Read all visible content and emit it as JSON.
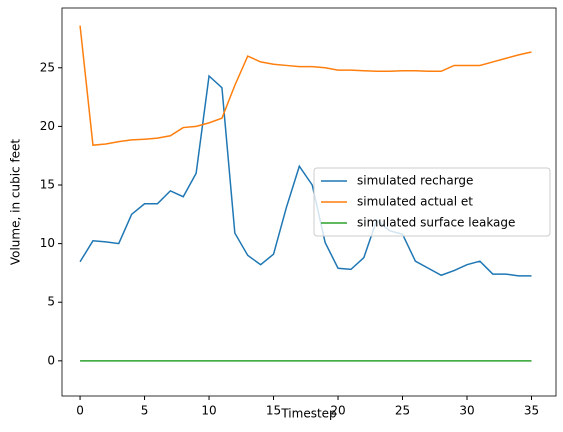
{
  "chart_data": {
    "type": "line",
    "xlabel": "Timestep",
    "ylabel": "Volume, in cubic feet",
    "x": [
      0,
      1,
      2,
      3,
      4,
      5,
      6,
      7,
      8,
      9,
      10,
      11,
      12,
      13,
      14,
      15,
      16,
      17,
      18,
      19,
      20,
      21,
      22,
      23,
      24,
      25,
      26,
      27,
      28,
      29,
      30,
      31,
      32,
      33,
      34,
      35
    ],
    "series": [
      {
        "name": "simulated recharge",
        "color": "#1f77b4",
        "values": [
          8.45,
          10.24,
          10.15,
          10.0,
          12.5,
          13.4,
          13.4,
          14.5,
          14.0,
          16.0,
          24.3,
          23.3,
          10.9,
          9.0,
          8.2,
          9.1,
          13.1,
          16.6,
          15.0,
          10.1,
          7.9,
          7.8,
          8.8,
          12.0,
          11.1,
          10.8,
          8.5,
          7.9,
          7.3,
          7.7,
          8.2,
          8.5,
          7.4,
          7.4,
          7.25,
          7.25
        ]
      },
      {
        "name": "simulated actual et",
        "color": "#ff7f0e",
        "values": [
          28.6,
          18.4,
          18.5,
          18.7,
          18.85,
          18.9,
          19.0,
          19.2,
          19.9,
          20.0,
          20.3,
          20.7,
          23.5,
          26.0,
          25.5,
          25.3,
          25.2,
          25.1,
          25.1,
          25.0,
          24.8,
          24.8,
          24.75,
          24.7,
          24.7,
          24.75,
          24.75,
          24.7,
          24.7,
          25.2,
          25.2,
          25.2,
          25.5,
          25.8,
          26.1,
          26.35
        ]
      },
      {
        "name": "simulated surface leakage",
        "color": "#2ca02c",
        "values": [
          0,
          0,
          0,
          0,
          0,
          0,
          0,
          0,
          0,
          0,
          0,
          0,
          0,
          0,
          0,
          0,
          0,
          0,
          0,
          0,
          0,
          0,
          0,
          0,
          0,
          0,
          0,
          0,
          0,
          0,
          0,
          0,
          0,
          0,
          0,
          0
        ]
      }
    ],
    "xlim": [
      -1.4,
      36.9
    ],
    "xticks": [
      0,
      5,
      10,
      15,
      20,
      25,
      30,
      35
    ],
    "ylim": [
      -3.0,
      30.1
    ],
    "yticks": [
      0,
      5,
      10,
      15,
      20,
      25
    ],
    "legend": "center right"
  }
}
